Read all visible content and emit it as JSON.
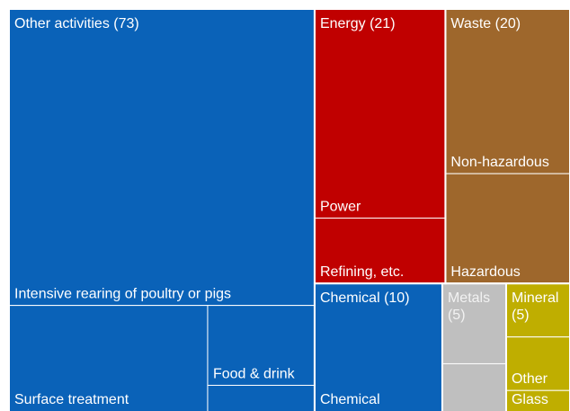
{
  "chart_data": {
    "type": "treemap",
    "children": [
      {
        "name": "Other activities (73)",
        "value": 73,
        "color": "#0a62b8",
        "children": [
          {
            "name": "Intensive rearing of poultry or pigs",
            "value": 53
          },
          {
            "children": [
              {
                "name": "Surface treatment",
                "value": 13
              },
              {
                "children": [
                  {
                    "name": "Food & drink",
                    "value": 5
                  },
                  {
                    "name": null,
                    "value": 2
                  }
                ]
              }
            ]
          }
        ]
      },
      {
        "children": [
          {
            "children": [
              {
                "name": "Energy (21)",
                "value": 21,
                "color": "#c00000",
                "children": [
                  {
                    "name": "Power",
                    "value": 16
                  },
                  {
                    "name": "Refining, etc.",
                    "value": 5
                  }
                ]
              },
              {
                "name": "Waste (20)",
                "value": 20,
                "color": "#9e672c",
                "children": [
                  {
                    "name": "Non-hazardous",
                    "value": 12
                  },
                  {
                    "name": "Hazardous",
                    "value": 8
                  }
                ]
              }
            ]
          },
          {
            "children": [
              {
                "name": "Chemical (10)",
                "value": 10,
                "color": "#0a62b8",
                "children": [
                  {
                    "name": "Chemical",
                    "value": 10
                  }
                ]
              },
              {
                "name": "Metals (5)",
                "value": 5,
                "color": "#bfbfbf",
                "children": [
                  {
                    "name": null,
                    "value": 3
                  },
                  {
                    "name": null,
                    "value": 2
                  }
                ]
              },
              {
                "name": "Mineral (5)",
                "value": 5,
                "color": "#bfae00",
                "children": [
                  {
                    "name": null,
                    "value": 2
                  },
                  {
                    "name": "Other",
                    "value": 2
                  },
                  {
                    "name": "Glass",
                    "value": 1
                  }
                ]
              }
            ]
          }
        ]
      }
    ]
  }
}
